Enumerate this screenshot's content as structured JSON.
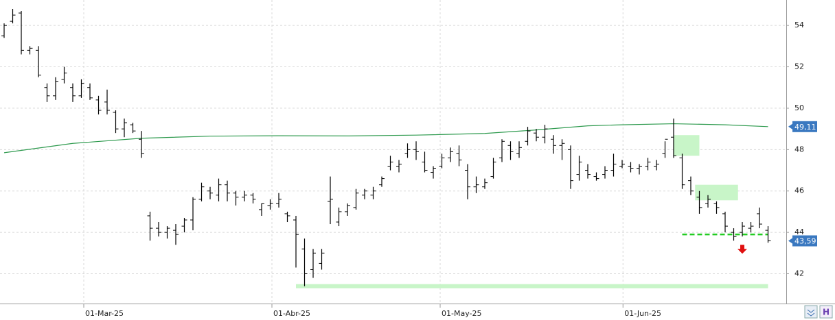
{
  "chart_data": {
    "type": "ohlc",
    "color": "#000000",
    "x": [
      0,
      1,
      2,
      3,
      4,
      5,
      6,
      7,
      8,
      9,
      10,
      11,
      12,
      13,
      14,
      15,
      16,
      17,
      18,
      19,
      20,
      21,
      22,
      23,
      24,
      25,
      26,
      27,
      28,
      29,
      30,
      31,
      32,
      33,
      34,
      35,
      36,
      37,
      38,
      39,
      40,
      41,
      42,
      43,
      44,
      45,
      46,
      47,
      48,
      49,
      50,
      51,
      52,
      53,
      54,
      55,
      56,
      57,
      58,
      59,
      60,
      61,
      62,
      63,
      64,
      65,
      66,
      67,
      68,
      69,
      70,
      71,
      72,
      73,
      74,
      75,
      76,
      77,
      78,
      79,
      80,
      81,
      82,
      83,
      84,
      85,
      86,
      87,
      88,
      89
    ],
    "open": [
      53.5,
      54.2,
      54.6,
      52.8,
      52.8,
      51.0,
      50.6,
      51.4,
      51.0,
      50.6,
      51.0,
      50.4,
      50.3,
      49.8,
      49.0,
      49.2,
      48.5,
      44.8,
      44.2,
      44.0,
      44.1,
      44.3,
      44.6,
      45.6,
      46.0,
      45.8,
      46.3,
      45.9,
      45.7,
      45.8,
      45.1,
      45.3,
      45.4,
      44.9,
      44.6,
      43.2,
      42.2,
      42.5,
      45.5,
      44.5,
      45.0,
      45.2,
      45.8,
      45.8,
      46.3,
      47.2,
      47.2,
      47.8,
      48.0,
      47.4,
      46.9,
      47.2,
      47.6,
      47.8,
      47.0,
      46.2,
      46.2,
      46.7,
      47.6,
      48.2,
      47.8,
      48.4,
      48.8,
      48.6,
      48.5,
      48.2,
      48.0,
      46.8,
      47.0,
      46.7,
      46.8,
      47.0,
      47.2,
      47.2,
      47.1,
      47.2,
      47.2,
      47.8,
      48.6,
      47.6,
      46.5,
      45.7,
      45.4,
      45.4,
      44.9,
      44.0,
      44.0,
      44.2,
      44.9,
      44.1
    ],
    "high": [
      54.1,
      54.8,
      54.7,
      53.0,
      53.0,
      51.2,
      51.5,
      52.0,
      51.2,
      51.4,
      51.2,
      50.6,
      50.9,
      49.9,
      49.5,
      49.3,
      48.9,
      45.0,
      44.5,
      44.3,
      44.4,
      44.7,
      45.7,
      46.4,
      46.2,
      46.6,
      46.5,
      46.0,
      46.0,
      45.9,
      45.4,
      45.6,
      45.9,
      45.0,
      44.8,
      43.7,
      43.2,
      43.2,
      46.7,
      45.2,
      45.4,
      46.1,
      46.1,
      46.2,
      46.7,
      47.7,
      47.5,
      48.3,
      48.4,
      47.9,
      47.2,
      47.8,
      48.1,
      48.2,
      47.3,
      46.7,
      46.6,
      47.6,
      48.5,
      48.4,
      48.4,
      49.1,
      49.0,
      49.2,
      48.7,
      48.5,
      48.2,
      47.7,
      47.3,
      46.9,
      47.2,
      47.8,
      47.5,
      47.4,
      47.3,
      47.6,
      47.5,
      48.4,
      49.5,
      47.8,
      46.7,
      46.0,
      45.8,
      45.5,
      45.0,
      44.2,
      44.5,
      44.5,
      45.2,
      44.3
    ],
    "low": [
      53.4,
      54.1,
      52.6,
      52.6,
      51.5,
      50.3,
      50.4,
      51.2,
      50.3,
      50.5,
      50.4,
      49.7,
      49.7,
      48.8,
      48.6,
      48.8,
      47.6,
      43.6,
      43.8,
      43.7,
      43.4,
      44.0,
      44.1,
      45.5,
      45.6,
      45.5,
      45.5,
      45.3,
      45.5,
      45.4,
      44.8,
      45.1,
      45.2,
      44.5,
      42.3,
      41.4,
      41.8,
      42.2,
      44.4,
      44.3,
      44.8,
      45.1,
      45.6,
      45.6,
      46.2,
      47.0,
      46.9,
      47.6,
      47.5,
      46.9,
      46.6,
      47.1,
      47.4,
      47.2,
      45.6,
      45.9,
      46.1,
      46.6,
      47.4,
      47.5,
      47.6,
      48.2,
      48.4,
      48.3,
      47.8,
      47.5,
      46.1,
      46.5,
      46.6,
      46.5,
      46.6,
      46.7,
      47.1,
      46.9,
      46.8,
      47.0,
      47.0,
      47.6,
      47.6,
      46.1,
      45.8,
      44.9,
      45.2,
      44.9,
      44.0,
      43.6,
      43.8,
      44.0,
      44.2,
      43.5
    ],
    "close": [
      54.0,
      54.5,
      52.8,
      52.9,
      51.6,
      50.6,
      51.3,
      51.7,
      50.6,
      51.2,
      50.5,
      49.9,
      49.9,
      49.0,
      49.3,
      48.9,
      47.8,
      44.2,
      44.0,
      44.2,
      43.9,
      44.6,
      45.6,
      46.2,
      45.9,
      46.3,
      45.9,
      45.7,
      45.8,
      45.6,
      45.4,
      45.4,
      45.6,
      44.8,
      43.9,
      42.0,
      43.0,
      43.0,
      45.6,
      45.0,
      45.3,
      45.9,
      46.0,
      46.0,
      46.6,
      47.4,
      47.3,
      48.0,
      47.9,
      47.0,
      47.1,
      47.6,
      47.9,
      47.5,
      46.2,
      46.3,
      46.4,
      47.4,
      48.4,
      47.9,
      48.1,
      48.9,
      48.6,
      49.0,
      48.2,
      48.3,
      46.5,
      47.4,
      46.8,
      46.6,
      47.0,
      47.3,
      47.3,
      47.1,
      47.2,
      47.4,
      47.3,
      48.5,
      47.7,
      46.3,
      46.0,
      45.2,
      45.6,
      45.2,
      44.3,
      43.8,
      44.3,
      44.3,
      44.4,
      43.59
    ],
    "average": {
      "color": "#2e9a4e",
      "x": [
        0,
        8,
        16,
        24,
        32,
        40,
        48,
        56,
        62,
        68,
        72,
        78,
        84,
        89
      ],
      "values": [
        47.85,
        48.3,
        48.55,
        48.65,
        48.67,
        48.66,
        48.7,
        48.78,
        48.95,
        49.15,
        49.2,
        49.25,
        49.2,
        49.11
      ]
    },
    "price_tags": [
      {
        "value": 49.11,
        "label": "49,11"
      },
      {
        "value": 43.59,
        "label": "43,59"
      }
    ],
    "support": {
      "value": 41.4,
      "x": [
        34,
        89
      ],
      "color": "#c8f5c8"
    },
    "dashed_level": {
      "value": 43.9,
      "x": [
        79,
        89
      ],
      "color": "#22cc22"
    },
    "zones": [
      {
        "x": [
          78,
          81
        ],
        "y": [
          47.7,
          48.7
        ]
      },
      {
        "x": [
          80.5,
          85.5
        ],
        "y": [
          45.55,
          46.3
        ]
      }
    ],
    "signal": {
      "x": 86,
      "value": 43.2,
      "color": "#e01010"
    },
    "ylim": [
      40.56,
      55.23
    ],
    "yticks": [
      42,
      44,
      46,
      48,
      50,
      52,
      54
    ],
    "xlim": [
      -0.48,
      91.12
    ],
    "xticks": [
      {
        "value": 9.28,
        "label": "01-Mar-25"
      },
      {
        "value": 31.2,
        "label": "01-Abr-25"
      },
      {
        "value": 50.8,
        "label": "01-May-25"
      },
      {
        "value": 72.1,
        "label": "01-Jun-25"
      }
    ],
    "grid": true
  }
}
